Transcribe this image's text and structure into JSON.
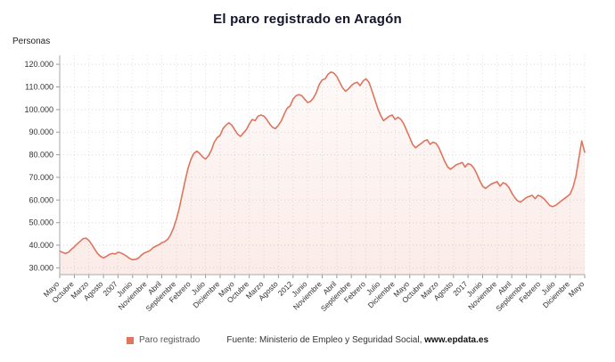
{
  "title": "El paro registrado en Aragón",
  "y_axis_unit_label": "Personas",
  "legend": {
    "label": "Paro registrado",
    "color": "#e0745c"
  },
  "source": {
    "prefix": "Fuente: Ministerio de Empleo y Seguridad Social, ",
    "site": "www.epdata.es"
  },
  "chart_data": {
    "type": "line",
    "title": "El paro registrado en Aragón",
    "ylabel": "Personas",
    "series_name": "Paro registrado",
    "line_color": "#e0745c",
    "grid": "dotted",
    "legend_position": "bottom",
    "ylim": [
      27000,
      124000
    ],
    "y_ticks": [
      30000,
      40000,
      50000,
      60000,
      70000,
      80000,
      90000,
      100000,
      110000,
      120000
    ],
    "y_tick_labels": [
      "30.000",
      "40.000",
      "50.000",
      "60.000",
      "70.000",
      "80.000",
      "90.000",
      "100.000",
      "110.000",
      "120.000"
    ],
    "x_tick_every": 5,
    "x_tick_labels": [
      "Mayo",
      "Octubre",
      "Marzo",
      "Agosto",
      "2007",
      "Junio",
      "Noviembre",
      "Abril",
      "Septiembre",
      "Febrero",
      "Julio",
      "Diciembre",
      "Mayo",
      "Octubre",
      "Marzo",
      "Agosto",
      "2012",
      "Junio",
      "Noviembre",
      "Abril",
      "Septiembre",
      "Febrero",
      "Julio",
      "Diciembre",
      "Mayo",
      "Octubre",
      "Marzo",
      "Agosto",
      "2017",
      "Junio",
      "Noviembre",
      "Abril",
      "Septiembre",
      "Febrero",
      "Julio",
      "Diciembre",
      "Mayo"
    ],
    "values": [
      37400,
      36800,
      36400,
      36900,
      38200,
      39300,
      40600,
      41700,
      42900,
      43100,
      42200,
      40300,
      38200,
      36300,
      35100,
      34400,
      35100,
      35900,
      36400,
      36100,
      36900,
      36600,
      35900,
      35100,
      34100,
      33600,
      33800,
      34300,
      35600,
      36600,
      37100,
      37700,
      38900,
      39600,
      40200,
      41100,
      41600,
      42600,
      44500,
      47500,
      51500,
      56500,
      62500,
      68500,
      74100,
      78100,
      80600,
      81600,
      80600,
      79100,
      78100,
      79600,
      82100,
      85600,
      87600,
      88600,
      91600,
      93100,
      94100,
      93100,
      91100,
      89100,
      88100,
      89600,
      91100,
      93600,
      95600,
      95100,
      97100,
      97600,
      97100,
      95600,
      93600,
      92100,
      91600,
      93100,
      95100,
      98100,
      100600,
      101600,
      104600,
      106100,
      106600,
      106100,
      104600,
      103100,
      103600,
      105100,
      107600,
      111100,
      113100,
      113600,
      115600,
      116600,
      116100,
      114600,
      112100,
      109600,
      108100,
      109100,
      110600,
      111600,
      112100,
      110600,
      112600,
      113600,
      112100,
      108600,
      104600,
      100600,
      97600,
      95100,
      96100,
      97100,
      97600,
      95600,
      96600,
      95600,
      93600,
      90600,
      87600,
      84600,
      83100,
      84100,
      85100,
      86100,
      86600,
      84600,
      85600,
      85100,
      83100,
      80100,
      77100,
      74600,
      73600,
      74600,
      75600,
      76100,
      76600,
      74600,
      76100,
      75600,
      74100,
      71600,
      68600,
      66100,
      65100,
      66100,
      67100,
      67600,
      68100,
      66100,
      67600,
      67100,
      65600,
      63100,
      61100,
      59600,
      59100,
      60100,
      61100,
      61600,
      62100,
      60600,
      62100,
      61600,
      60600,
      59100,
      57600,
      57100,
      57600,
      58600,
      59600,
      60600,
      61600,
      62600,
      65600,
      70600,
      78600,
      86100,
      81100
    ]
  }
}
